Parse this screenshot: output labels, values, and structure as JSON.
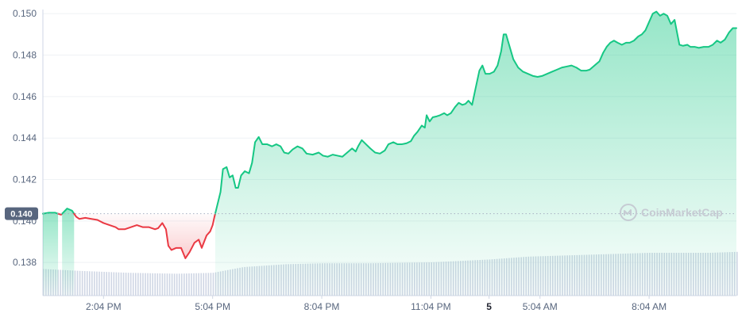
{
  "chart_data": {
    "type": "area",
    "title": "",
    "xlabel": "",
    "ylabel": "",
    "ylim": [
      0.1364,
      0.1502
    ],
    "y_ticks": [
      "0.150",
      "0.148",
      "0.146",
      "0.144",
      "0.142",
      "0.140",
      "0.138"
    ],
    "x_ticks": [
      {
        "label": "2:04 PM",
        "t": 100,
        "bold": false
      },
      {
        "label": "5:04 PM",
        "t": 280,
        "bold": false
      },
      {
        "label": "8:04 PM",
        "t": 460,
        "bold": false
      },
      {
        "label": "11:04 PM",
        "t": 640,
        "bold": false
      },
      {
        "label": "5",
        "t": 736,
        "bold": true
      },
      {
        "label": "5:04 AM",
        "t": 820,
        "bold": false
      },
      {
        "label": "8:04 AM",
        "t": 1000,
        "bold": false
      }
    ],
    "reference_price": 0.14035,
    "reference_label": "0.140",
    "up_color": "#16c784",
    "down_color": "#ea3943",
    "watermark": "CoinMarketCap",
    "price": [
      [
        0,
        0.14035
      ],
      [
        10,
        0.1404
      ],
      [
        20,
        0.1404
      ],
      [
        30,
        0.1403
      ],
      [
        40,
        0.1406
      ],
      [
        48,
        0.1405
      ],
      [
        55,
        0.1402
      ],
      [
        60,
        0.1401
      ],
      [
        70,
        0.14015
      ],
      [
        80,
        0.1401
      ],
      [
        90,
        0.14005
      ],
      [
        100,
        0.1399
      ],
      [
        110,
        0.1398
      ],
      [
        120,
        0.1397
      ],
      [
        125,
        0.1396
      ],
      [
        135,
        0.1396
      ],
      [
        145,
        0.1397
      ],
      [
        155,
        0.1398
      ],
      [
        165,
        0.1397
      ],
      [
        175,
        0.1397
      ],
      [
        185,
        0.1396
      ],
      [
        190,
        0.13965
      ],
      [
        197,
        0.1399
      ],
      [
        203,
        0.1396
      ],
      [
        207,
        0.1388
      ],
      [
        212,
        0.1386
      ],
      [
        220,
        0.1387
      ],
      [
        228,
        0.1387
      ],
      [
        235,
        0.1382
      ],
      [
        242,
        0.1385
      ],
      [
        250,
        0.13895
      ],
      [
        257,
        0.1391
      ],
      [
        262,
        0.1387
      ],
      [
        270,
        0.1393
      ],
      [
        276,
        0.1395
      ],
      [
        280,
        0.1398
      ],
      [
        283,
        0.1402
      ],
      [
        288,
        0.1408
      ],
      [
        293,
        0.1414
      ],
      [
        297,
        0.1425
      ],
      [
        303,
        0.1426
      ],
      [
        308,
        0.1421
      ],
      [
        313,
        0.1422
      ],
      [
        318,
        0.1416
      ],
      [
        322,
        0.1416
      ],
      [
        327,
        0.1422
      ],
      [
        333,
        0.1424
      ],
      [
        340,
        0.1423
      ],
      [
        345,
        0.1428
      ],
      [
        350,
        0.1438
      ],
      [
        356,
        0.14405
      ],
      [
        362,
        0.1437
      ],
      [
        370,
        0.1437
      ],
      [
        378,
        0.1436
      ],
      [
        385,
        0.1437
      ],
      [
        392,
        0.1436
      ],
      [
        398,
        0.1433
      ],
      [
        405,
        0.14325
      ],
      [
        412,
        0.14345
      ],
      [
        420,
        0.1436
      ],
      [
        428,
        0.1435
      ],
      [
        435,
        0.14325
      ],
      [
        445,
        0.1432
      ],
      [
        455,
        0.1433
      ],
      [
        462,
        0.14315
      ],
      [
        470,
        0.1431
      ],
      [
        478,
        0.1432
      ],
      [
        486,
        0.14315
      ],
      [
        494,
        0.1431
      ],
      [
        502,
        0.1433
      ],
      [
        510,
        0.1435
      ],
      [
        516,
        0.14335
      ],
      [
        520,
        0.1436
      ],
      [
        526,
        0.1439
      ],
      [
        533,
        0.1437
      ],
      [
        540,
        0.1435
      ],
      [
        548,
        0.1433
      ],
      [
        556,
        0.14325
      ],
      [
        564,
        0.1434
      ],
      [
        570,
        0.1437
      ],
      [
        578,
        0.1438
      ],
      [
        585,
        0.1437
      ],
      [
        592,
        0.1437
      ],
      [
        600,
        0.14375
      ],
      [
        607,
        0.14385
      ],
      [
        612,
        0.1441
      ],
      [
        618,
        0.1443
      ],
      [
        625,
        0.1446
      ],
      [
        630,
        0.1445
      ],
      [
        633,
        0.1451
      ],
      [
        638,
        0.1448
      ],
      [
        643,
        0.145
      ],
      [
        650,
        0.14505
      ],
      [
        655,
        0.1451
      ],
      [
        662,
        0.1452
      ],
      [
        667,
        0.1451
      ],
      [
        673,
        0.1452
      ],
      [
        680,
        0.1455
      ],
      [
        686,
        0.1457
      ],
      [
        692,
        0.1456
      ],
      [
        697,
        0.14565
      ],
      [
        702,
        0.1458
      ],
      [
        708,
        0.1456
      ],
      [
        713,
        0.1463
      ],
      [
        720,
        0.14725
      ],
      [
        725,
        0.1475
      ],
      [
        730,
        0.1471
      ],
      [
        737,
        0.1471
      ],
      [
        744,
        0.1472
      ],
      [
        750,
        0.1475
      ],
      [
        756,
        0.1482
      ],
      [
        760,
        0.149
      ],
      [
        764,
        0.149
      ],
      [
        770,
        0.1484
      ],
      [
        776,
        0.1478
      ],
      [
        784,
        0.1474
      ],
      [
        792,
        0.1472
      ],
      [
        800,
        0.1471
      ],
      [
        808,
        0.147
      ],
      [
        816,
        0.14695
      ],
      [
        824,
        0.147
      ],
      [
        832,
        0.1471
      ],
      [
        840,
        0.1472
      ],
      [
        848,
        0.1473
      ],
      [
        856,
        0.1474
      ],
      [
        864,
        0.14745
      ],
      [
        872,
        0.1475
      ],
      [
        880,
        0.1474
      ],
      [
        888,
        0.14725
      ],
      [
        896,
        0.14725
      ],
      [
        902,
        0.1473
      ],
      [
        910,
        0.1475
      ],
      [
        918,
        0.1477
      ],
      [
        924,
        0.1481
      ],
      [
        930,
        0.1484
      ],
      [
        936,
        0.1486
      ],
      [
        942,
        0.1487
      ],
      [
        948,
        0.1486
      ],
      [
        955,
        0.1485
      ],
      [
        962,
        0.1486
      ],
      [
        968,
        0.1486
      ],
      [
        975,
        0.1487
      ],
      [
        982,
        0.1489
      ],
      [
        988,
        0.149
      ],
      [
        994,
        0.1492
      ],
      [
        1000,
        0.1496
      ],
      [
        1006,
        0.15
      ],
      [
        1012,
        0.1501
      ],
      [
        1018,
        0.1499
      ],
      [
        1024,
        0.15
      ],
      [
        1030,
        0.1499
      ],
      [
        1036,
        0.1495
      ],
      [
        1042,
        0.1497
      ],
      [
        1046,
        0.1491
      ],
      [
        1050,
        0.1485
      ],
      [
        1056,
        0.14845
      ],
      [
        1063,
        0.1485
      ],
      [
        1068,
        0.1484
      ],
      [
        1075,
        0.1484
      ],
      [
        1082,
        0.14835
      ],
      [
        1090,
        0.1484
      ],
      [
        1098,
        0.1484
      ],
      [
        1105,
        0.1485
      ],
      [
        1112,
        0.1487
      ],
      [
        1118,
        0.1486
      ],
      [
        1125,
        0.14875
      ],
      [
        1132,
        0.1491
      ],
      [
        1138,
        0.1493
      ],
      [
        1144,
        0.1493
      ]
    ],
    "volume": [
      [
        0,
        0.28
      ],
      [
        60,
        0.26
      ],
      [
        140,
        0.24
      ],
      [
        220,
        0.23
      ],
      [
        280,
        0.24
      ],
      [
        330,
        0.3
      ],
      [
        400,
        0.33
      ],
      [
        460,
        0.34
      ],
      [
        540,
        0.34
      ],
      [
        640,
        0.35
      ],
      [
        736,
        0.38
      ],
      [
        800,
        0.41
      ],
      [
        900,
        0.43
      ],
      [
        1000,
        0.45
      ],
      [
        1100,
        0.45
      ],
      [
        1144,
        0.46
      ]
    ]
  }
}
